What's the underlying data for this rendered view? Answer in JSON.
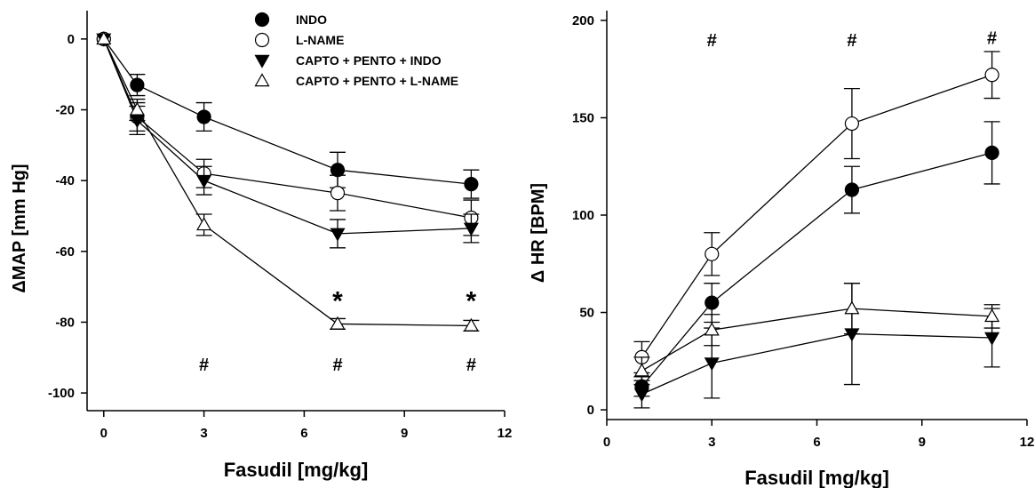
{
  "chart_data": [
    {
      "type": "line",
      "title": "",
      "xlabel": "Fasudil [mg/kg]",
      "ylabel": "ΔMAP [mm Hg]",
      "xlim": [
        -0.5,
        12
      ],
      "ylim": [
        -105,
        8
      ],
      "xticks": [
        0,
        3,
        6,
        9,
        12
      ],
      "yticks": [
        0,
        -20,
        -40,
        -60,
        -80,
        -100
      ],
      "xtick_labels": [
        "0",
        "3",
        "6",
        "9",
        "12"
      ],
      "ytick_labels": [
        "0",
        "-20",
        "-40",
        "-60",
        "-80",
        "-100"
      ],
      "legend_placement": "top-right",
      "series": [
        {
          "name": "INDO",
          "marker": "circle-filled",
          "x": [
            0,
            1,
            3,
            7,
            11
          ],
          "y": [
            0,
            -13,
            -22,
            -37,
            -41
          ],
          "err": [
            0,
            3,
            4,
            5,
            4
          ]
        },
        {
          "name": "L-NAME",
          "marker": "circle-open",
          "x": [
            0,
            1,
            3,
            7,
            11
          ],
          "y": [
            0,
            -22,
            -38,
            -43.5,
            -50.5
          ],
          "err": [
            0,
            4,
            4,
            5,
            5
          ]
        },
        {
          "name": "CAPTO + PENTO + INDO",
          "marker": "triangle-down-filled",
          "x": [
            0,
            1,
            3,
            7,
            11
          ],
          "y": [
            0,
            -23,
            -40,
            -55,
            -53.5
          ],
          "err": [
            0,
            4,
            4,
            4,
            4
          ]
        },
        {
          "name": "CAPTO + PENTO + L-NAME",
          "marker": "triangle-up-open",
          "x": [
            0,
            1,
            3,
            7,
            11
          ],
          "y": [
            0,
            -20,
            -52.5,
            -80.5,
            -81
          ],
          "err": [
            0,
            3,
            3,
            1.5,
            1.5
          ]
        }
      ],
      "annotations": [
        {
          "text": "*",
          "x": 7,
          "y": -73
        },
        {
          "text": "*",
          "x": 11,
          "y": -73
        },
        {
          "text": "#",
          "x": 3,
          "y": -92
        },
        {
          "text": "#",
          "x": 7,
          "y": -92
        },
        {
          "text": "#",
          "x": 11,
          "y": -92
        }
      ]
    },
    {
      "type": "line",
      "title": "",
      "xlabel": "Fasudil [mg/kg]",
      "ylabel": "Δ HR [BPM]",
      "xlim": [
        0,
        12
      ],
      "ylim": [
        -5,
        205
      ],
      "xticks": [
        0,
        3,
        6,
        9,
        12
      ],
      "yticks": [
        0,
        50,
        100,
        150,
        200
      ],
      "xtick_labels": [
        "0",
        "3",
        "6",
        "9",
        "12"
      ],
      "ytick_labels": [
        "0",
        "50",
        "100",
        "150",
        "200"
      ],
      "series": [
        {
          "name": "INDO",
          "marker": "circle-filled",
          "x": [
            1,
            3,
            7,
            11
          ],
          "y": [
            12,
            55,
            113,
            132
          ],
          "err": [
            5,
            10,
            12,
            16
          ]
        },
        {
          "name": "L-NAME",
          "marker": "circle-open",
          "x": [
            1,
            3,
            7,
            11
          ],
          "y": [
            27,
            80,
            147,
            172
          ],
          "err": [
            8,
            11,
            18,
            12
          ]
        },
        {
          "name": "CAPTO + PENTO + INDO",
          "marker": "triangle-down-filled",
          "x": [
            1,
            3,
            7,
            11
          ],
          "y": [
            8,
            24,
            39,
            37
          ],
          "err": [
            7,
            18,
            26,
            15
          ]
        },
        {
          "name": "CAPTO + PENTO + L-NAME",
          "marker": "triangle-up-open",
          "x": [
            1,
            3,
            7,
            11
          ],
          "y": [
            20,
            41,
            52,
            48
          ],
          "err": [
            7,
            8,
            13,
            6
          ]
        }
      ],
      "annotations": [
        {
          "text": "#",
          "x": 3,
          "y": 190
        },
        {
          "text": "#",
          "x": 7,
          "y": 190
        },
        {
          "text": "#",
          "x": 11,
          "y": 191
        }
      ]
    }
  ]
}
